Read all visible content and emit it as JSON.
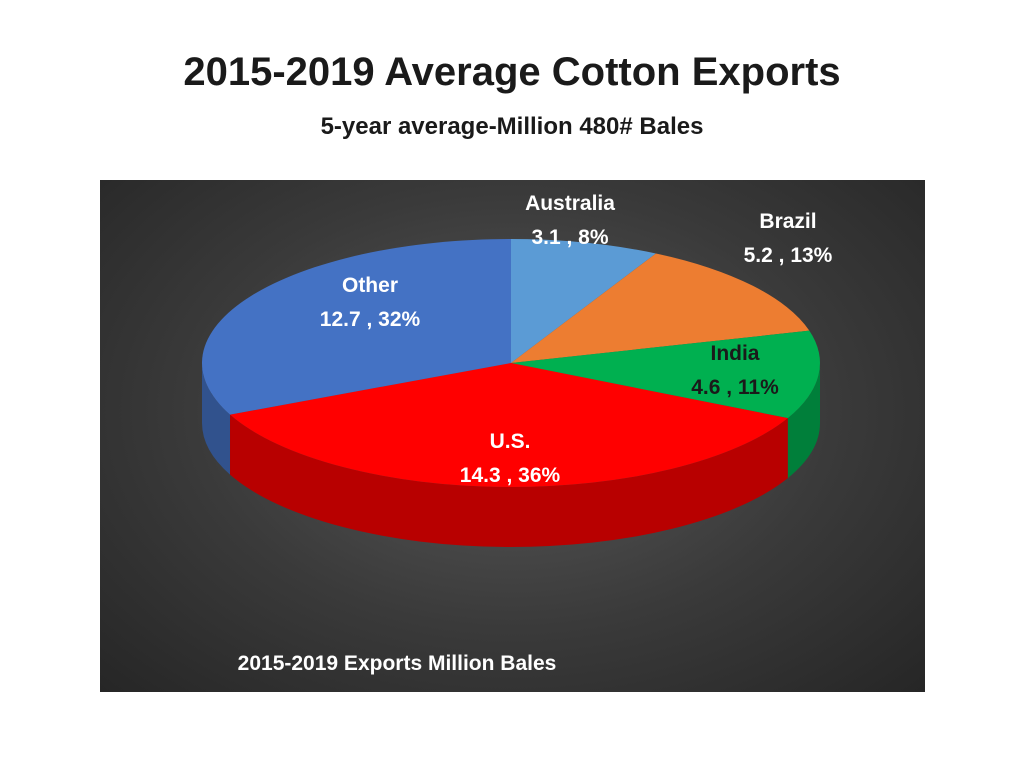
{
  "title": "2015-2019 Average Cotton Exports",
  "subtitle": "5-year average-Million 480# Bales",
  "chart_data": {
    "type": "pie",
    "title": "2015-2019 Exports Million Bales",
    "slices": [
      {
        "name": "Australia",
        "value": 3.1,
        "percent": "8%",
        "label": "3.1 , 8%",
        "color": "#5b9bd5"
      },
      {
        "name": "Brazil",
        "value": 5.2,
        "percent": "13%",
        "label": "5.2 , 13%",
        "color": "#ed7d31"
      },
      {
        "name": "India",
        "value": 4.6,
        "percent": "11%",
        "label": "4.6 , 11%",
        "color": "#00b050"
      },
      {
        "name": "U.S.",
        "value": 14.3,
        "percent": "36%",
        "label": "14.3 , 36%",
        "color": "#ff0000"
      },
      {
        "name": "Other",
        "value": 12.7,
        "percent": "32%",
        "label": "12.7 , 32%",
        "color": "#4472c4"
      }
    ]
  }
}
